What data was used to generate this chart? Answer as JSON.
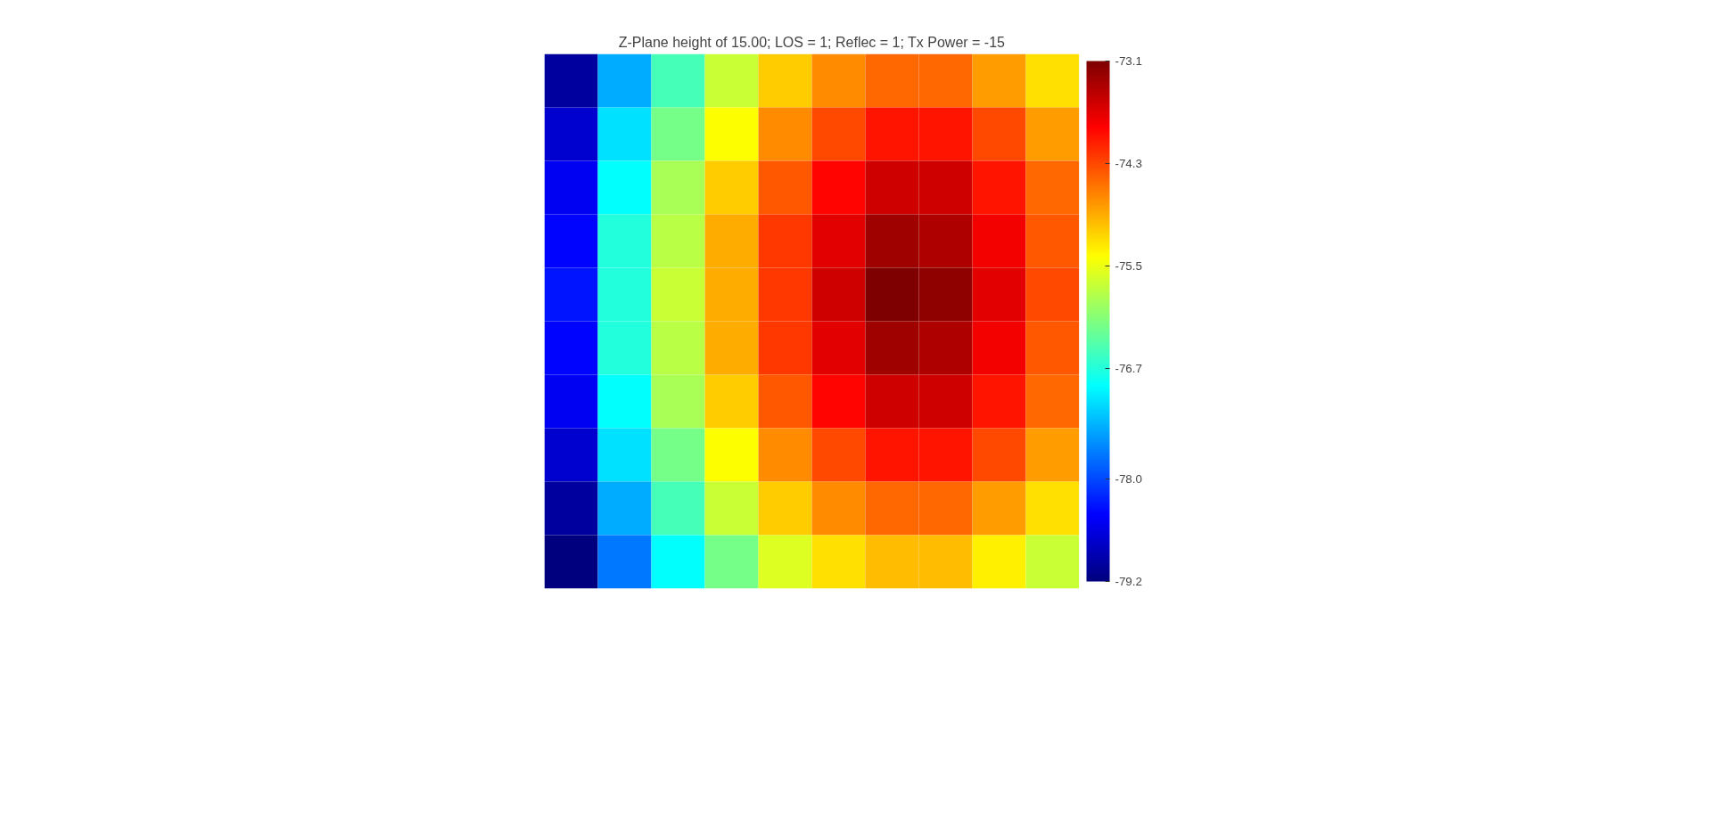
{
  "chart_data": {
    "type": "heatmap",
    "title": "Z-Plane height of 15.00; LOS = 1; Reflec = 1; Tx Power = -15",
    "categories": [
      null,
      null,
      null,
      null,
      null,
      null,
      null,
      null,
      null,
      null
    ],
    "y_categories": [
      null,
      null,
      null,
      null,
      null,
      null,
      null,
      null,
      null,
      null
    ],
    "cells": [
      [
        -79.0,
        -77.4,
        -76.5,
        -75.7,
        -75.1,
        -74.7,
        -74.5,
        -74.5,
        -74.8,
        -75.2
      ],
      [
        -78.7,
        -77.1,
        -76.2,
        -75.4,
        -74.7,
        -74.3,
        -74.0,
        -74.0,
        -74.3,
        -74.8
      ],
      [
        -78.5,
        -76.9,
        -75.9,
        -75.1,
        -74.4,
        -73.9,
        -73.6,
        -73.6,
        -74.0,
        -74.5
      ],
      [
        -78.4,
        -76.7,
        -75.8,
        -74.9,
        -74.2,
        -73.7,
        -73.3,
        -73.4,
        -73.8,
        -74.4
      ],
      [
        -78.3,
        -76.7,
        -75.7,
        -74.9,
        -74.2,
        -73.6,
        -73.1,
        -73.2,
        -73.7,
        -74.3
      ],
      [
        -78.4,
        -76.7,
        -75.8,
        -74.9,
        -74.2,
        -73.7,
        -73.3,
        -73.4,
        -73.8,
        -74.4
      ],
      [
        -78.5,
        -76.9,
        -75.9,
        -75.1,
        -74.4,
        -73.9,
        -73.6,
        -73.6,
        -74.0,
        -74.5
      ],
      [
        -78.7,
        -77.1,
        -76.2,
        -75.4,
        -74.7,
        -74.3,
        -74.0,
        -74.0,
        -74.3,
        -74.8
      ],
      [
        -79.0,
        -77.4,
        -76.5,
        -75.7,
        -75.1,
        -74.7,
        -74.5,
        -74.5,
        -74.8,
        -75.2
      ],
      [
        -79.2,
        -77.7,
        -76.9,
        -76.2,
        -75.6,
        -75.2,
        -75.0,
        -75.0,
        -75.3,
        -75.7
      ]
    ],
    "clim": [
      -79.2,
      -73.1
    ],
    "cticks": [
      -79.2,
      {
        "value": -78,
        "label": "-78.0"
      },
      -76.7,
      -75.5,
      -74.3,
      -73.1
    ],
    "tick_labels": false
  }
}
